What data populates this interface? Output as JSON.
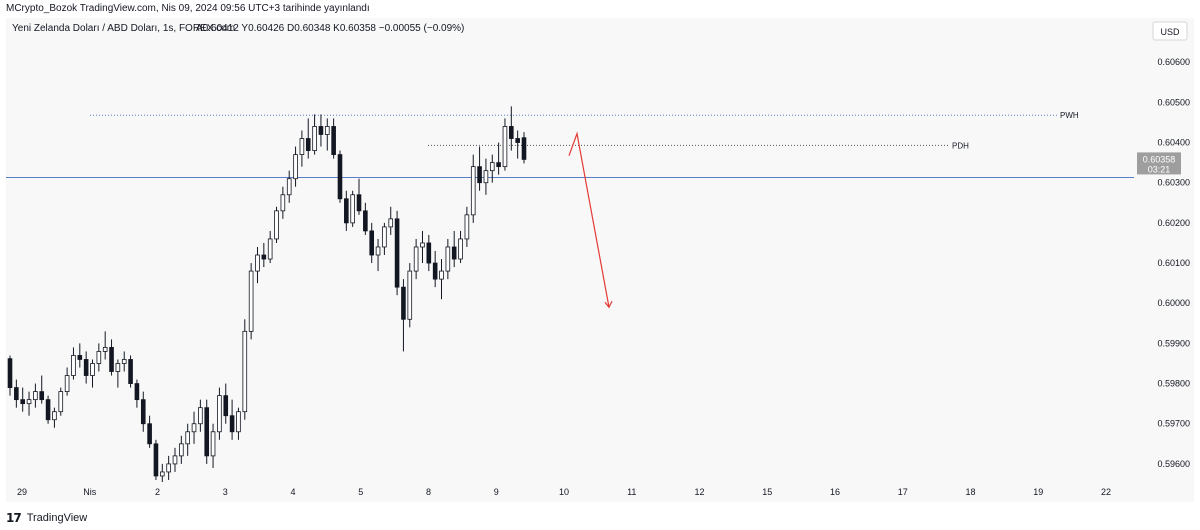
{
  "header": {
    "publisher": "MCrypto_Bozok TradingView.com, Nis 09, 2024 09:56 UTC+3 tarihinde yayınlandı"
  },
  "legend": {
    "symbol": "Yeni Zelanda Doları / ABD Doları, 1s, FOREX.com",
    "ohlc": "A0.60412  Y0.60426  D0.60348  K0.60358  −0.00055 (−0.09%)"
  },
  "currency_button": "USD",
  "price_tag": {
    "price": "0.60358",
    "countdown": "03:21"
  },
  "footer": {
    "brand_mark": "17",
    "brand_text": "TradingView"
  },
  "colors": {
    "up": "#ffffff",
    "down": "#131722",
    "level_line": "#5b7ec9",
    "pdh_line": "#555555",
    "arrow": "#e53935",
    "price_tag_bg": "#9e9e9e"
  },
  "chart_data": {
    "type": "candlestick",
    "y_axis": {
      "range": [
        0.5955,
        0.6071
      ],
      "ticks": [
        "0.60600",
        "0.60500",
        "0.60400",
        "0.60300",
        "0.60200",
        "0.60100",
        "0.60000",
        "0.59900",
        "0.59800",
        "0.59700",
        "0.59600"
      ]
    },
    "x_axis": {
      "labels": [
        "29",
        "Nis",
        "2",
        "3",
        "4",
        "5",
        "8",
        "9",
        "10",
        "11",
        "12",
        "15",
        "16",
        "17",
        "18",
        "19",
        "22"
      ]
    },
    "levels": [
      {
        "label": "PWH",
        "price": 0.60468,
        "style": "dotted"
      },
      {
        "label": "PDH",
        "price": 0.60393,
        "style": "dotted"
      },
      {
        "label": "",
        "price": 0.60313,
        "style": "solid"
      }
    ],
    "projection_arrow": {
      "from_price": 0.60422,
      "to_price": 0.5999,
      "start_after": "9",
      "end_near": "10",
      "direction": "down"
    },
    "candles": [
      {
        "o": 0.59862,
        "h": 0.5987,
        "l": 0.5977,
        "c": 0.5979
      },
      {
        "o": 0.5979,
        "h": 0.5981,
        "l": 0.5974,
        "c": 0.5976
      },
      {
        "o": 0.5976,
        "h": 0.5979,
        "l": 0.5973,
        "c": 0.5975
      },
      {
        "o": 0.5975,
        "h": 0.5978,
        "l": 0.5972,
        "c": 0.5976
      },
      {
        "o": 0.5976,
        "h": 0.598,
        "l": 0.5974,
        "c": 0.5978
      },
      {
        "o": 0.5978,
        "h": 0.5982,
        "l": 0.5975,
        "c": 0.5976
      },
      {
        "o": 0.5976,
        "h": 0.5977,
        "l": 0.597,
        "c": 0.5971
      },
      {
        "o": 0.5971,
        "h": 0.5974,
        "l": 0.5969,
        "c": 0.5973
      },
      {
        "o": 0.5973,
        "h": 0.5979,
        "l": 0.5972,
        "c": 0.5978
      },
      {
        "o": 0.5978,
        "h": 0.5984,
        "l": 0.5977,
        "c": 0.5982
      },
      {
        "o": 0.5982,
        "h": 0.5989,
        "l": 0.5981,
        "c": 0.5987
      },
      {
        "o": 0.5987,
        "h": 0.599,
        "l": 0.5984,
        "c": 0.5986
      },
      {
        "o": 0.5986,
        "h": 0.5988,
        "l": 0.598,
        "c": 0.5982
      },
      {
        "o": 0.5982,
        "h": 0.5986,
        "l": 0.5979,
        "c": 0.5985
      },
      {
        "o": 0.5985,
        "h": 0.599,
        "l": 0.5983,
        "c": 0.5988
      },
      {
        "o": 0.5988,
        "h": 0.5993,
        "l": 0.5986,
        "c": 0.5989
      },
      {
        "o": 0.5989,
        "h": 0.5991,
        "l": 0.5982,
        "c": 0.5983
      },
      {
        "o": 0.5983,
        "h": 0.5986,
        "l": 0.5979,
        "c": 0.5985
      },
      {
        "o": 0.5985,
        "h": 0.5988,
        "l": 0.5983,
        "c": 0.5986
      },
      {
        "o": 0.5986,
        "h": 0.5987,
        "l": 0.5979,
        "c": 0.598
      },
      {
        "o": 0.598,
        "h": 0.5981,
        "l": 0.5974,
        "c": 0.5976
      },
      {
        "o": 0.5976,
        "h": 0.5978,
        "l": 0.5968,
        "c": 0.597
      },
      {
        "o": 0.597,
        "h": 0.5972,
        "l": 0.5964,
        "c": 0.5965
      },
      {
        "o": 0.5965,
        "h": 0.5966,
        "l": 0.5956,
        "c": 0.5957
      },
      {
        "o": 0.5957,
        "h": 0.596,
        "l": 0.59555,
        "c": 0.5958
      },
      {
        "o": 0.5958,
        "h": 0.5962,
        "l": 0.5956,
        "c": 0.596
      },
      {
        "o": 0.596,
        "h": 0.5964,
        "l": 0.5958,
        "c": 0.5962
      },
      {
        "o": 0.5962,
        "h": 0.5967,
        "l": 0.596,
        "c": 0.5965
      },
      {
        "o": 0.5965,
        "h": 0.597,
        "l": 0.5962,
        "c": 0.5968
      },
      {
        "o": 0.5968,
        "h": 0.5973,
        "l": 0.5965,
        "c": 0.597
      },
      {
        "o": 0.597,
        "h": 0.5976,
        "l": 0.5968,
        "c": 0.5974
      },
      {
        "o": 0.5974,
        "h": 0.5976,
        "l": 0.596,
        "c": 0.5962
      },
      {
        "o": 0.5962,
        "h": 0.597,
        "l": 0.5959,
        "c": 0.5968
      },
      {
        "o": 0.5968,
        "h": 0.5979,
        "l": 0.5966,
        "c": 0.5977
      },
      {
        "o": 0.5977,
        "h": 0.598,
        "l": 0.597,
        "c": 0.5972
      },
      {
        "o": 0.5972,
        "h": 0.5976,
        "l": 0.5966,
        "c": 0.5968
      },
      {
        "o": 0.5968,
        "h": 0.5974,
        "l": 0.5966,
        "c": 0.5973
      },
      {
        "o": 0.5973,
        "h": 0.5996,
        "l": 0.5971,
        "c": 0.5993
      },
      {
        "o": 0.5993,
        "h": 0.601,
        "l": 0.5991,
        "c": 0.6008
      },
      {
        "o": 0.6008,
        "h": 0.6014,
        "l": 0.6005,
        "c": 0.6012
      },
      {
        "o": 0.6012,
        "h": 0.6015,
        "l": 0.6009,
        "c": 0.6011
      },
      {
        "o": 0.6011,
        "h": 0.6018,
        "l": 0.601,
        "c": 0.6016
      },
      {
        "o": 0.6016,
        "h": 0.6024,
        "l": 0.6015,
        "c": 0.6023
      },
      {
        "o": 0.6023,
        "h": 0.6029,
        "l": 0.6021,
        "c": 0.6027
      },
      {
        "o": 0.6027,
        "h": 0.6033,
        "l": 0.6025,
        "c": 0.6031
      },
      {
        "o": 0.6031,
        "h": 0.6039,
        "l": 0.6029,
        "c": 0.6037
      },
      {
        "o": 0.6037,
        "h": 0.6043,
        "l": 0.6034,
        "c": 0.6041
      },
      {
        "o": 0.6041,
        "h": 0.6046,
        "l": 0.6036,
        "c": 0.6038
      },
      {
        "o": 0.6038,
        "h": 0.6047,
        "l": 0.6037,
        "c": 0.6044
      },
      {
        "o": 0.6044,
        "h": 0.6047,
        "l": 0.6039,
        "c": 0.6042
      },
      {
        "o": 0.6042,
        "h": 0.6046,
        "l": 0.6038,
        "c": 0.6044
      },
      {
        "o": 0.6044,
        "h": 0.6046,
        "l": 0.6036,
        "c": 0.6037
      },
      {
        "o": 0.6037,
        "h": 0.6038,
        "l": 0.6025,
        "c": 0.6026
      },
      {
        "o": 0.6026,
        "h": 0.6028,
        "l": 0.6018,
        "c": 0.602
      },
      {
        "o": 0.602,
        "h": 0.6028,
        "l": 0.6019,
        "c": 0.6027
      },
      {
        "o": 0.6027,
        "h": 0.6031,
        "l": 0.6022,
        "c": 0.6023
      },
      {
        "o": 0.6023,
        "h": 0.6025,
        "l": 0.6017,
        "c": 0.6018
      },
      {
        "o": 0.6018,
        "h": 0.602,
        "l": 0.601,
        "c": 0.6012
      },
      {
        "o": 0.6012,
        "h": 0.6016,
        "l": 0.6008,
        "c": 0.6014
      },
      {
        "o": 0.6014,
        "h": 0.602,
        "l": 0.6012,
        "c": 0.6019
      },
      {
        "o": 0.6019,
        "h": 0.6024,
        "l": 0.6017,
        "c": 0.6021
      },
      {
        "o": 0.6021,
        "h": 0.6023,
        "l": 0.6002,
        "c": 0.6004
      },
      {
        "o": 0.6004,
        "h": 0.6006,
        "l": 0.5988,
        "c": 0.5996
      },
      {
        "o": 0.5996,
        "h": 0.601,
        "l": 0.5994,
        "c": 0.6008
      },
      {
        "o": 0.6008,
        "h": 0.6016,
        "l": 0.6006,
        "c": 0.6014
      },
      {
        "o": 0.6014,
        "h": 0.6018,
        "l": 0.601,
        "c": 0.6015
      },
      {
        "o": 0.6015,
        "h": 0.6017,
        "l": 0.6008,
        "c": 0.601
      },
      {
        "o": 0.601,
        "h": 0.6013,
        "l": 0.6004,
        "c": 0.6006
      },
      {
        "o": 0.6006,
        "h": 0.6011,
        "l": 0.6001,
        "c": 0.6008
      },
      {
        "o": 0.6008,
        "h": 0.6016,
        "l": 0.6006,
        "c": 0.6014
      },
      {
        "o": 0.6014,
        "h": 0.6018,
        "l": 0.6009,
        "c": 0.6011
      },
      {
        "o": 0.6011,
        "h": 0.6018,
        "l": 0.601,
        "c": 0.6016
      },
      {
        "o": 0.6016,
        "h": 0.6024,
        "l": 0.6014,
        "c": 0.6022
      },
      {
        "o": 0.6022,
        "h": 0.6037,
        "l": 0.602,
        "c": 0.6034
      },
      {
        "o": 0.6034,
        "h": 0.6039,
        "l": 0.6028,
        "c": 0.603
      },
      {
        "o": 0.603,
        "h": 0.6036,
        "l": 0.6027,
        "c": 0.6033
      },
      {
        "o": 0.6033,
        "h": 0.6037,
        "l": 0.603,
        "c": 0.6035
      },
      {
        "o": 0.6035,
        "h": 0.604,
        "l": 0.6032,
        "c": 0.6034
      },
      {
        "o": 0.6034,
        "h": 0.6046,
        "l": 0.6033,
        "c": 0.6044
      },
      {
        "o": 0.6044,
        "h": 0.6049,
        "l": 0.6038,
        "c": 0.6041
      },
      {
        "o": 0.6041,
        "h": 0.6043,
        "l": 0.6036,
        "c": 0.604
      },
      {
        "o": 0.60412,
        "h": 0.60426,
        "l": 0.60348,
        "c": 0.60358
      }
    ]
  }
}
